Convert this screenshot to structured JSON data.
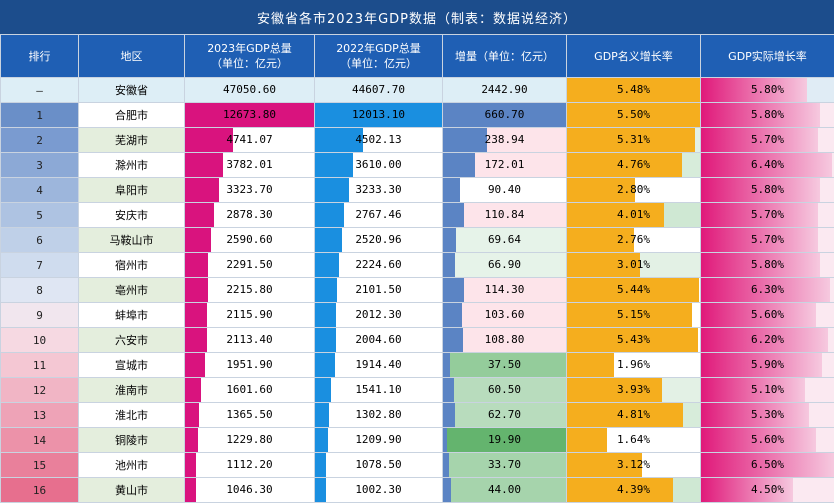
{
  "title": "安徽省各市2023年GDP数据（制表：数据说经济）",
  "headers": [
    "排行",
    "地区",
    "2023年GDP总量",
    "2022年GDP总量",
    "增量（单位：亿元）",
    "GDP名义增长率",
    "GDP实际增长率"
  ],
  "headers_sub": [
    "",
    "",
    "（单位：亿元）",
    "（单位：亿元）",
    "",
    "",
    ""
  ],
  "colors": {
    "header_bg": "#1f5fb4",
    "title_bg": "#1c4d8c",
    "gdp2023_bar": "#d9137e",
    "gdp2022_bar": "#1a8fe0",
    "increase_bar": "#5b84c4",
    "nominal_bar": "#f5ae1e",
    "real_bar": "#e0197a"
  },
  "total": {
    "rank": "—",
    "region": "安徽省",
    "gdp2023": "47050.60",
    "gdp2022": "44607.70",
    "increase": "2442.90",
    "nominal": "5.48%",
    "real": "5.80%"
  },
  "rows": [
    {
      "rank": "1",
      "region": "合肥市",
      "gdp2023": "12673.80",
      "gdp2022": "12013.10",
      "increase": "660.70",
      "nominal": "5.50%",
      "real": "5.80%"
    },
    {
      "rank": "2",
      "region": "芜湖市",
      "gdp2023": "4741.07",
      "gdp2022": "4502.13",
      "increase": "238.94",
      "nominal": "5.31%",
      "real": "5.70%"
    },
    {
      "rank": "3",
      "region": "滁州市",
      "gdp2023": "3782.01",
      "gdp2022": "3610.00",
      "increase": "172.01",
      "nominal": "4.76%",
      "real": "6.40%"
    },
    {
      "rank": "4",
      "region": "阜阳市",
      "gdp2023": "3323.70",
      "gdp2022": "3233.30",
      "increase": "90.40",
      "nominal": "2.80%",
      "real": "5.80%"
    },
    {
      "rank": "5",
      "region": "安庆市",
      "gdp2023": "2878.30",
      "gdp2022": "2767.46",
      "increase": "110.84",
      "nominal": "4.01%",
      "real": "5.70%"
    },
    {
      "rank": "6",
      "region": "马鞍山市",
      "gdp2023": "2590.60",
      "gdp2022": "2520.96",
      "increase": "69.64",
      "nominal": "2.76%",
      "real": "5.70%"
    },
    {
      "rank": "7",
      "region": "宿州市",
      "gdp2023": "2291.50",
      "gdp2022": "2224.60",
      "increase": "66.90",
      "nominal": "3.01%",
      "real": "5.80%"
    },
    {
      "rank": "8",
      "region": "亳州市",
      "gdp2023": "2215.80",
      "gdp2022": "2101.50",
      "increase": "114.30",
      "nominal": "5.44%",
      "real": "6.30%"
    },
    {
      "rank": "9",
      "region": "蚌埠市",
      "gdp2023": "2115.90",
      "gdp2022": "2012.30",
      "increase": "103.60",
      "nominal": "5.15%",
      "real": "5.60%"
    },
    {
      "rank": "10",
      "region": "六安市",
      "gdp2023": "2113.40",
      "gdp2022": "2004.60",
      "increase": "108.80",
      "nominal": "5.43%",
      "real": "6.20%"
    },
    {
      "rank": "11",
      "region": "宣城市",
      "gdp2023": "1951.90",
      "gdp2022": "1914.40",
      "increase": "37.50",
      "nominal": "1.96%",
      "real": "5.90%"
    },
    {
      "rank": "12",
      "region": "淮南市",
      "gdp2023": "1601.60",
      "gdp2022": "1541.10",
      "increase": "60.50",
      "nominal": "3.93%",
      "real": "5.10%"
    },
    {
      "rank": "13",
      "region": "淮北市",
      "gdp2023": "1365.50",
      "gdp2022": "1302.80",
      "increase": "62.70",
      "nominal": "4.81%",
      "real": "5.30%"
    },
    {
      "rank": "14",
      "region": "铜陵市",
      "gdp2023": "1229.80",
      "gdp2022": "1209.90",
      "increase": "19.90",
      "nominal": "1.64%",
      "real": "5.60%"
    },
    {
      "rank": "15",
      "region": "池州市",
      "gdp2023": "1112.20",
      "gdp2022": "1078.50",
      "increase": "33.70",
      "nominal": "3.12%",
      "real": "6.50%"
    },
    {
      "rank": "16",
      "region": "黄山市",
      "gdp2023": "1046.30",
      "gdp2022": "1002.30",
      "increase": "44.00",
      "nominal": "4.39%",
      "real": "4.50%"
    }
  ]
}
